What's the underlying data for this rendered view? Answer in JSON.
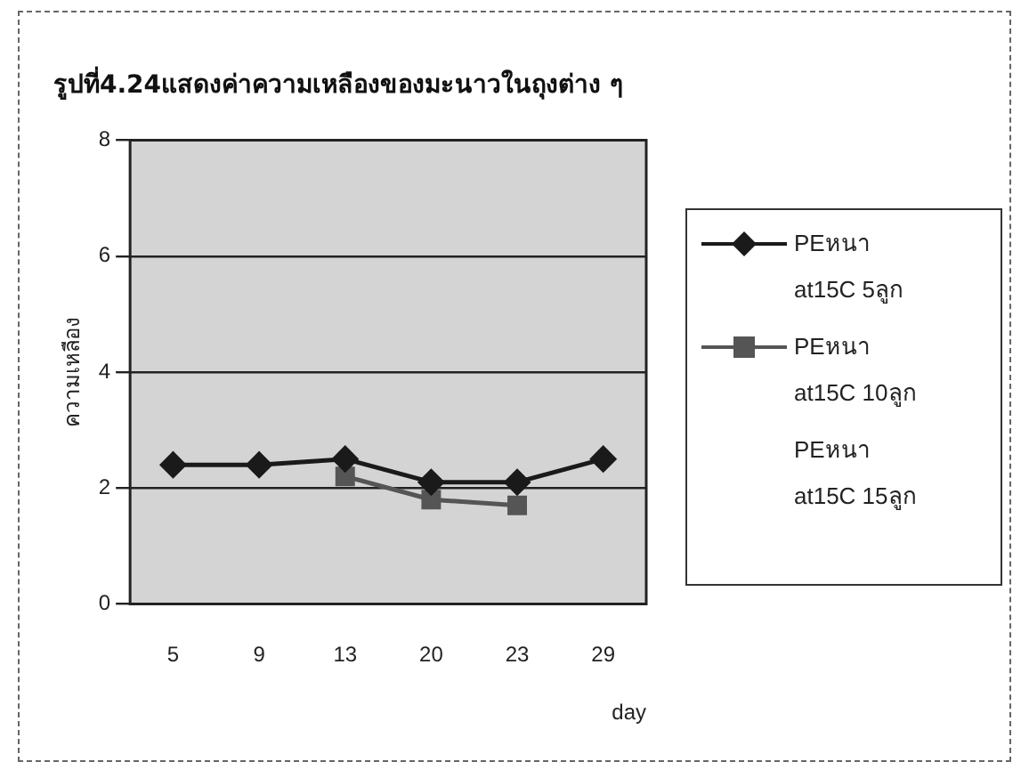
{
  "chart_data": {
    "type": "line",
    "title": "รูปที่4.24แสดงค่าความเหลืองของมะนาวในถุงต่าง ๆ",
    "xlabel": "day",
    "ylabel": "ความเหลือง",
    "categories": [
      "5",
      "9",
      "13",
      "20",
      "23",
      "29"
    ],
    "series": [
      {
        "name": "PEหนา at15C 5ลูก",
        "color": "#1a1a1a",
        "marker": "diamond",
        "values": [
          2.4,
          2.4,
          2.5,
          2.1,
          2.1,
          2.5
        ]
      },
      {
        "name": "PEหนา at15C 10ลูก",
        "color": "#555555",
        "marker": "square",
        "values": [
          null,
          null,
          2.2,
          1.8,
          1.7,
          null
        ]
      },
      {
        "name": "PEหนา at15C 15ลูก",
        "marker": "none",
        "values": [
          null,
          null,
          null,
          null,
          null,
          null
        ]
      }
    ],
    "ylim": [
      0,
      8
    ],
    "yticks": [
      0,
      2,
      4,
      6,
      8
    ],
    "grid": "y",
    "legend": "right"
  }
}
